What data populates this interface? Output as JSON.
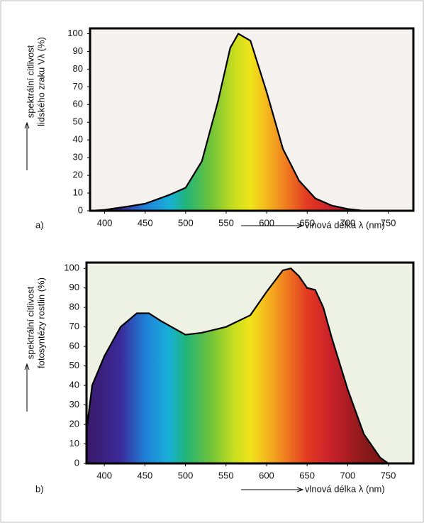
{
  "chart_data": [
    {
      "type": "area",
      "panel": "a)",
      "y_label": [
        "spektrální citlivost",
        "lidského zraku Vλ (%)"
      ],
      "x_label": "vlnová délka λ (nm)",
      "x": [
        383,
        400,
        430,
        450,
        480,
        500,
        520,
        540,
        555,
        565,
        580,
        600,
        620,
        640,
        660,
        680,
        700,
        720
      ],
      "values": [
        0,
        0.5,
        2.5,
        4,
        9,
        13,
        28,
        62,
        92,
        100,
        96,
        67,
        35,
        17,
        7,
        3,
        1,
        0
      ],
      "xlim": [
        382,
        781
      ],
      "ylim": [
        0,
        103
      ],
      "xticks": [
        400,
        450,
        500,
        550,
        600,
        650,
        700,
        750
      ],
      "yticks": [
        0,
        10,
        20,
        30,
        40,
        50,
        60,
        70,
        80,
        90,
        100
      ]
    },
    {
      "type": "area",
      "panel": "b)",
      "y_label": [
        "spektrální citlivost",
        "fotosyntézy rostlin (%)"
      ],
      "x_label": "vlnová délka λ (nm)",
      "x": [
        379,
        385,
        400,
        420,
        440,
        455,
        470,
        500,
        520,
        550,
        580,
        600,
        620,
        630,
        640,
        650,
        660,
        670,
        680,
        700,
        720,
        740,
        750
      ],
      "values": [
        20,
        40,
        55,
        70,
        77,
        77,
        73,
        66,
        67,
        70,
        76,
        88,
        99,
        100,
        96,
        90,
        89,
        80,
        65,
        38,
        15,
        3,
        0
      ],
      "xlim": [
        378,
        781
      ],
      "ylim": [
        0,
        103
      ],
      "xticks": [
        400,
        450,
        500,
        550,
        600,
        650,
        700,
        750
      ],
      "yticks": [
        0,
        10,
        20,
        30,
        40,
        50,
        60,
        70,
        80,
        90,
        100
      ]
    }
  ]
}
